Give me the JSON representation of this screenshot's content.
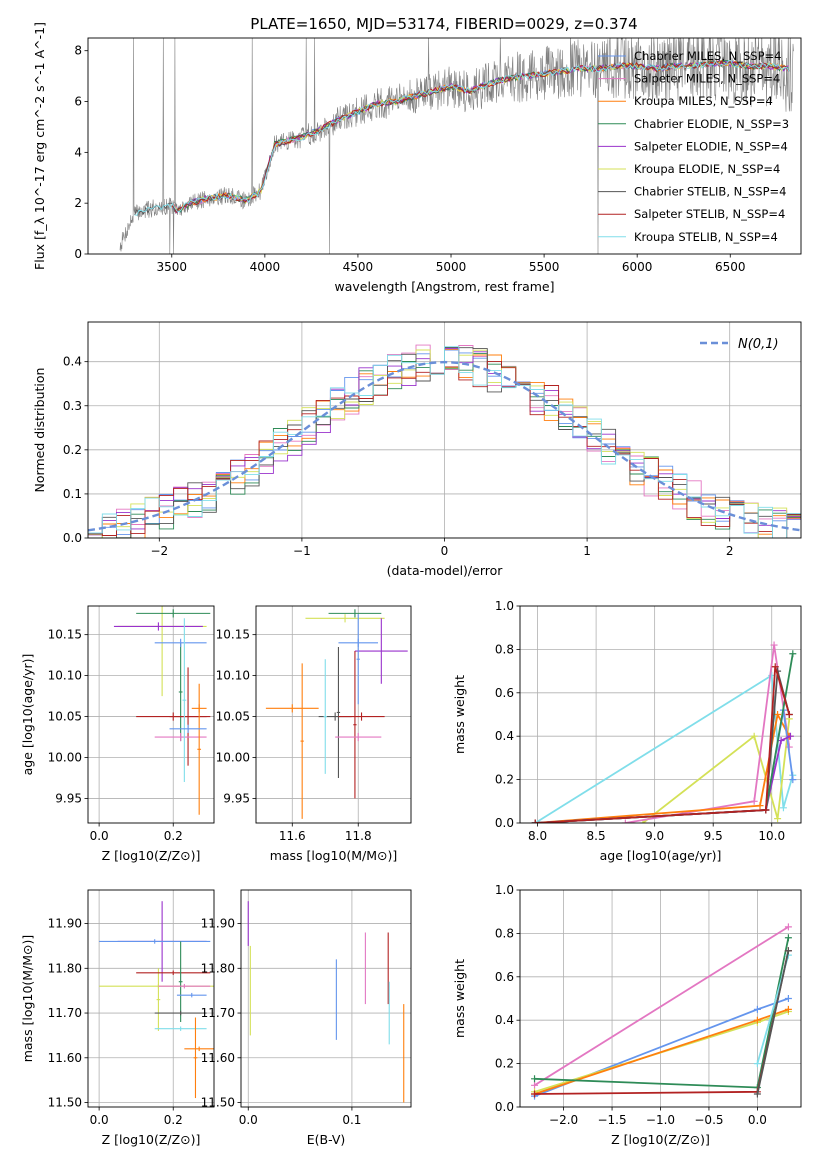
{
  "figure_title": "PLATE=1650, MJD=53174, FIBERID=0029, z=0.374",
  "chart_data": [
    {
      "id": "spectrum",
      "type": "line",
      "title": "PLATE=1650, MJD=53174, FIBERID=0029, z=0.374",
      "xlabel": "wavelength [Angstrom, rest frame]",
      "ylabel": "Flux [f_λ 10^-17 erg cm^-2 s^-1 A^-1]",
      "xlim": [
        3050,
        6880
      ],
      "ylim": [
        0,
        8.5
      ],
      "xticks": [
        3500,
        4000,
        4500,
        5000,
        5500,
        6000,
        6500
      ],
      "yticks": [
        0,
        2,
        4,
        6,
        8
      ],
      "grid": false,
      "legend_position": "right",
      "data_knots_x": [
        3220,
        3300,
        3400,
        3500,
        3530,
        3600,
        3700,
        3800,
        3900,
        3980,
        4050,
        4100,
        4200,
        4300,
        4400,
        4500,
        4600,
        4700,
        4800,
        4900,
        5000,
        5100,
        5200,
        5300,
        5400,
        5500,
        5600,
        5700,
        5800,
        5900,
        6000,
        6100,
        6200,
        6300,
        6400,
        6500,
        6600,
        6700,
        6800
      ],
      "data_knots_y": [
        0.3,
        1.6,
        1.8,
        1.9,
        1.7,
        2.0,
        2.2,
        2.3,
        2.1,
        2.5,
        4.3,
        4.4,
        4.6,
        4.9,
        5.3,
        5.6,
        5.9,
        6.0,
        6.2,
        6.4,
        6.6,
        6.4,
        6.7,
        6.9,
        7.0,
        7.1,
        7.2,
        7.3,
        7.3,
        7.4,
        7.4,
        7.3,
        7.4,
        7.4,
        7.5,
        7.5,
        7.4,
        7.4,
        7.3
      ],
      "series": [
        {
          "name": "Chabrier MILES, N_SSP=4",
          "color": "#6495ed"
        },
        {
          "name": "Salpeter MILES, N_SSP=4",
          "color": "#e377c2"
        },
        {
          "name": "Kroupa MILES, N_SSP=4",
          "color": "#ff7f0e"
        },
        {
          "name": "Chabrier ELODIE, N_SSP=3",
          "color": "#2e8b57"
        },
        {
          "name": "Salpeter ELODIE, N_SSP=4",
          "color": "#9932cc"
        },
        {
          "name": "Kroupa ELODIE, N_SSP=4",
          "color": "#d4e157"
        },
        {
          "name": "Chabrier STELIB, N_SSP=4",
          "color": "#555555"
        },
        {
          "name": "Salpeter STELIB, N_SSP=4",
          "color": "#b22222"
        },
        {
          "name": "Kroupa STELIB, N_SSP=4",
          "color": "#80deea"
        }
      ]
    },
    {
      "id": "residuals",
      "type": "line",
      "xlabel": "(data-model)/error",
      "ylabel": "Normed distribution",
      "xlim": [
        -2.5,
        2.5
      ],
      "ylim": [
        0,
        0.49
      ],
      "xticks": [
        -2,
        -1,
        0,
        1,
        2
      ],
      "yticks": [
        0.0,
        0.1,
        0.2,
        0.3,
        0.4
      ],
      "grid": true,
      "legend_position": "top-right",
      "reference_curve": {
        "name": "N(0,1)",
        "color": "#6a8fd8"
      },
      "histogram_bin_width": 0.1
    },
    {
      "id": "age-vs-Z",
      "type": "scatter",
      "xlabel": "Z [log10(Z/Z⊙)]",
      "ylabel": "age  [log10(age/yr)]",
      "xlim": [
        -0.03,
        0.31
      ],
      "ylim": [
        9.92,
        10.185
      ],
      "xticks": [
        0.0,
        0.2
      ],
      "yticks": [
        9.95,
        10.0,
        10.05,
        10.1,
        10.15
      ],
      "grid": true,
      "points": [
        {
          "x": 0.17,
          "y": 10.16,
          "xerr": 0.12,
          "yerr": 0.085,
          "color": "#d4e157"
        },
        {
          "x": 0.2,
          "y": 10.176,
          "xerr": 0.1,
          "yerr": 0.005,
          "color": "#2e8b57"
        },
        {
          "x": 0.16,
          "y": 10.16,
          "xerr": 0.12,
          "yerr": 0.005,
          "color": "#9932cc"
        },
        {
          "x": 0.22,
          "y": 10.08,
          "xerr": 0.005,
          "yerr": 0.06,
          "color": "#2e8b57"
        },
        {
          "x": 0.22,
          "y": 10.14,
          "xerr": 0.07,
          "yerr": 0.005,
          "color": "#6495ed"
        },
        {
          "x": 0.2,
          "y": 10.05,
          "xerr": 0.1,
          "yerr": 0.005,
          "color": "#b22222"
        },
        {
          "x": 0.24,
          "y": 10.05,
          "xerr": 0.05,
          "yerr": 0.06,
          "color": "#b22222"
        },
        {
          "x": 0.22,
          "y": 10.025,
          "xerr": 0.07,
          "yerr": 0.005,
          "color": "#e377c2"
        },
        {
          "x": 0.23,
          "y": 10.07,
          "xerr": 0.005,
          "yerr": 0.1,
          "color": "#80deea"
        },
        {
          "x": 0.27,
          "y": 10.06,
          "xerr": 0.02,
          "yerr": 0.005,
          "color": "#ff7f0e"
        },
        {
          "x": 0.27,
          "y": 10.01,
          "xerr": 0.005,
          "yerr": 0.08,
          "color": "#ff7f0e"
        },
        {
          "x": 0.24,
          "y": 10.035,
          "xerr": 0.05,
          "yerr": 0.005,
          "color": "#6495ed"
        }
      ]
    },
    {
      "id": "age-vs-mass",
      "type": "scatter",
      "xlabel": "mass [log10(M/M⊙)]",
      "ylabel": "",
      "xlim": [
        11.49,
        11.96
      ],
      "ylim": [
        9.92,
        10.185
      ],
      "xticks": [
        11.6,
        11.8
      ],
      "yticks": [
        9.95,
        10.0,
        10.05,
        10.1,
        10.15
      ],
      "grid": true,
      "points": [
        {
          "x": 11.76,
          "y": 10.17,
          "xerr": 0.12,
          "yerr": 0.005,
          "color": "#d4e157"
        },
        {
          "x": 11.79,
          "y": 10.176,
          "xerr": 0.08,
          "yerr": 0.005,
          "color": "#2e8b57"
        },
        {
          "x": 11.87,
          "y": 10.13,
          "xerr": 0.08,
          "yerr": 0.04,
          "color": "#9932cc"
        },
        {
          "x": 11.8,
          "y": 10.14,
          "xerr": 0.06,
          "yerr": 0.005,
          "color": "#6495ed"
        },
        {
          "x": 11.8,
          "y": 10.12,
          "xerr": 0.005,
          "yerr": 0.055,
          "color": "#6495ed"
        },
        {
          "x": 11.73,
          "y": 10.05,
          "xerr": 0.05,
          "yerr": 0.005,
          "color": "#555555"
        },
        {
          "x": 11.74,
          "y": 10.055,
          "xerr": 0.005,
          "yerr": 0.08,
          "color": "#555555"
        },
        {
          "x": 11.81,
          "y": 10.05,
          "xerr": 0.07,
          "yerr": 0.005,
          "color": "#b22222"
        },
        {
          "x": 11.79,
          "y": 10.04,
          "xerr": 0.005,
          "yerr": 0.09,
          "color": "#b22222"
        },
        {
          "x": 11.8,
          "y": 10.025,
          "xerr": 0.07,
          "yerr": 0.005,
          "color": "#e377c2"
        },
        {
          "x": 11.7,
          "y": 10.05,
          "xerr": 0.005,
          "yerr": 0.07,
          "color": "#80deea"
        },
        {
          "x": 11.6,
          "y": 10.06,
          "xerr": 0.08,
          "yerr": 0.005,
          "color": "#ff7f0e"
        },
        {
          "x": 11.63,
          "y": 10.02,
          "xerr": 0.005,
          "yerr": 0.095,
          "color": "#ff7f0e"
        }
      ]
    },
    {
      "id": "mass-weight-vs-age",
      "type": "line",
      "xlabel": "age  [log10(age/yr)]",
      "ylabel": "mass weight",
      "xlim": [
        7.85,
        10.25
      ],
      "ylim": [
        0,
        1.0
      ],
      "xticks": [
        8.0,
        8.5,
        9.0,
        9.5,
        10.0
      ],
      "yticks": [
        0.0,
        0.2,
        0.4,
        0.6,
        0.8,
        1.0
      ],
      "grid": true,
      "series": [
        {
          "color": "#80deea",
          "x": [
            7.98,
            10.0,
            10.1,
            10.18
          ],
          "y": [
            0.0,
            0.68,
            0.07,
            0.22
          ]
        },
        {
          "color": "#d4e157",
          "x": [
            8.9,
            9.85,
            10.05,
            10.15
          ],
          "y": [
            0.0,
            0.4,
            0.02,
            0.48
          ]
        },
        {
          "color": "#e377c2",
          "x": [
            8.75,
            9.85,
            10.02,
            10.15
          ],
          "y": [
            0.0,
            0.1,
            0.82,
            0.35
          ]
        },
        {
          "color": "#ff7f0e",
          "x": [
            7.98,
            9.9,
            10.05,
            10.15
          ],
          "y": [
            0.0,
            0.08,
            0.5,
            0.4
          ]
        },
        {
          "color": "#6495ed",
          "x": [
            7.98,
            9.95,
            10.1,
            10.18
          ],
          "y": [
            0.0,
            0.06,
            0.52,
            0.2
          ]
        },
        {
          "color": "#9932cc",
          "x": [
            7.98,
            9.95,
            10.08,
            10.16
          ],
          "y": [
            0.0,
            0.06,
            0.38,
            0.4
          ]
        },
        {
          "color": "#2e8b57",
          "x": [
            7.98,
            9.95,
            10.18
          ],
          "y": [
            0.0,
            0.06,
            0.78
          ]
        },
        {
          "color": "#555555",
          "x": [
            7.98,
            9.95,
            10.05,
            10.15
          ],
          "y": [
            0.0,
            0.06,
            0.7,
            0.5
          ]
        },
        {
          "color": "#b22222",
          "x": [
            7.98,
            9.95,
            10.03,
            10.15
          ],
          "y": [
            0.0,
            0.06,
            0.72,
            0.5
          ]
        }
      ]
    },
    {
      "id": "mass-vs-Z",
      "type": "scatter",
      "xlabel": "Z [log10(Z/Z⊙)]",
      "ylabel": "mass [log10(M/M⊙)]",
      "xlim": [
        -0.03,
        0.31
      ],
      "ylim": [
        11.49,
        11.975
      ],
      "xticks": [
        0.0,
        0.2
      ],
      "yticks": [
        11.5,
        11.6,
        11.7,
        11.8,
        11.9
      ],
      "grid": true,
      "points": [
        {
          "x": 0.17,
          "y": 11.86,
          "xerr": 0.12,
          "yerr": 0.09,
          "color": "#9932cc"
        },
        {
          "x": 0.15,
          "y": 11.86,
          "xerr": 0.15,
          "yerr": 0.005,
          "color": "#6495ed"
        },
        {
          "x": 0.16,
          "y": 11.76,
          "xerr": 0.16,
          "yerr": 0.005,
          "color": "#d4e157"
        },
        {
          "x": 0.16,
          "y": 11.73,
          "xerr": 0.005,
          "yerr": 0.07,
          "color": "#d4e157"
        },
        {
          "x": 0.2,
          "y": 11.79,
          "xerr": 0.1,
          "yerr": 0.005,
          "color": "#b22222"
        },
        {
          "x": 0.22,
          "y": 11.77,
          "xerr": 0.005,
          "yerr": 0.09,
          "color": "#2e8b57"
        },
        {
          "x": 0.22,
          "y": 11.7,
          "xerr": 0.07,
          "yerr": 0.005,
          "color": "#555555"
        },
        {
          "x": 0.23,
          "y": 11.76,
          "xerr": 0.07,
          "yerr": 0.005,
          "color": "#e377c2"
        },
        {
          "x": 0.25,
          "y": 11.74,
          "xerr": 0.04,
          "yerr": 0.005,
          "color": "#6495ed"
        },
        {
          "x": 0.22,
          "y": 11.665,
          "xerr": 0.07,
          "yerr": 0.005,
          "color": "#80deea"
        },
        {
          "x": 0.27,
          "y": 11.62,
          "xerr": 0.04,
          "yerr": 0.005,
          "color": "#ff7f0e"
        },
        {
          "x": 0.26,
          "y": 11.6,
          "xerr": 0.005,
          "yerr": 0.09,
          "color": "#ff7f0e"
        }
      ]
    },
    {
      "id": "mass-vs-EBV",
      "type": "scatter",
      "xlabel": "E(B-V)",
      "ylabel": "",
      "xlim": [
        -0.007,
        0.157
      ],
      "ylim": [
        11.49,
        11.975
      ],
      "xticks": [
        0.0,
        0.1
      ],
      "yticks": [
        11.5,
        11.6,
        11.7,
        11.8,
        11.9
      ],
      "grid": true,
      "points": [
        {
          "x": 0.0,
          "y": 11.9,
          "xerr": 0.0,
          "yerr": 0.05,
          "color": "#9932cc"
        },
        {
          "x": 0.002,
          "y": 11.75,
          "xerr": 0.0,
          "yerr": 0.1,
          "color": "#d4e157"
        },
        {
          "x": 0.085,
          "y": 11.73,
          "xerr": 0.0,
          "yerr": 0.09,
          "color": "#6495ed"
        },
        {
          "x": 0.113,
          "y": 11.8,
          "xerr": 0.0,
          "yerr": 0.08,
          "color": "#e377c2"
        },
        {
          "x": 0.135,
          "y": 11.8,
          "xerr": 0.0,
          "yerr": 0.08,
          "color": "#b22222"
        },
        {
          "x": 0.136,
          "y": 11.7,
          "xerr": 0.0,
          "yerr": 0.07,
          "color": "#80deea"
        },
        {
          "x": 0.15,
          "y": 11.61,
          "xerr": 0.0,
          "yerr": 0.11,
          "color": "#ff7f0e"
        }
      ]
    },
    {
      "id": "mass-weight-vs-Z",
      "type": "line",
      "xlabel": "Z [log10(Z/Z⊙)]",
      "ylabel": "mass weight",
      "xlim": [
        -2.45,
        0.45
      ],
      "ylim": [
        0,
        1.0
      ],
      "xticks": [
        -2.0,
        -1.5,
        -1.0,
        -0.5,
        0.0
      ],
      "yticks": [
        0.0,
        0.2,
        0.4,
        0.6,
        0.8,
        1.0
      ],
      "grid": true,
      "series": [
        {
          "color": "#e377c2",
          "x": [
            -2.3,
            0.32
          ],
          "y": [
            0.1,
            0.83
          ]
        },
        {
          "color": "#6495ed",
          "x": [
            -2.3,
            0.0,
            0.32
          ],
          "y": [
            0.05,
            0.45,
            0.5
          ]
        },
        {
          "color": "#d4e157",
          "x": [
            -2.3,
            0.0,
            0.32
          ],
          "y": [
            0.07,
            0.39,
            0.44
          ]
        },
        {
          "color": "#ff7f0e",
          "x": [
            -2.3,
            0.0,
            0.32
          ],
          "y": [
            0.06,
            0.4,
            0.45
          ]
        },
        {
          "color": "#2e8b57",
          "x": [
            -2.3,
            0.0,
            0.32
          ],
          "y": [
            0.13,
            0.09,
            0.78
          ]
        },
        {
          "color": "#b22222",
          "x": [
            -2.3,
            0.0,
            0.32
          ],
          "y": [
            0.06,
            0.07,
            0.72
          ]
        },
        {
          "color": "#80deea",
          "x": [
            0.0,
            0.32
          ],
          "y": [
            0.2,
            0.7
          ]
        },
        {
          "color": "#555555",
          "x": [
            0.0,
            0.32
          ],
          "y": [
            0.06,
            0.72
          ]
        }
      ]
    }
  ]
}
